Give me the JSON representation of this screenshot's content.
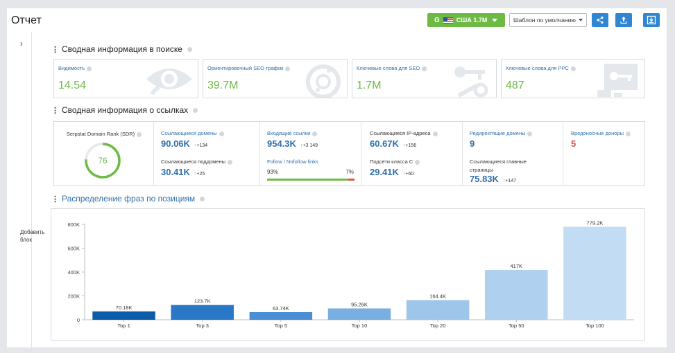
{
  "header": {
    "title": "Отчет",
    "region_button": "США 1.7M",
    "template_select": "Шаблон по умолчанию"
  },
  "sidebar": {
    "add_block": "Добавить блок"
  },
  "search_summary": {
    "title": "Сводная информация в поиске",
    "cards": [
      {
        "label": "Видимость",
        "value": "14.54"
      },
      {
        "label": "Ориентировочный SEO трафик",
        "value": "39.7M"
      },
      {
        "label": "Ключевые слова для SEO",
        "value": "1.7M"
      },
      {
        "label": "Ключевые слова для PPC",
        "value": "487"
      }
    ]
  },
  "links_summary": {
    "title": "Сводная информация о ссылках",
    "sdr_label": "Serpstat Domain Rank (SDR)",
    "sdr_value": "76",
    "sdr_fraction": 0.76,
    "ref_domains_label": "Ссылающиеся домены",
    "ref_domains_value": "90.06K",
    "ref_domains_delta": "+134",
    "ref_subdomains_label": "Ссылающиеся поддомены",
    "ref_subdomains_value": "30.41K",
    "ref_subdomains_delta": "+25",
    "backlinks_label": "Входящие ссылки",
    "backlinks_value": "954.3K",
    "backlinks_delta": "+3 149",
    "follow_label": "Follow / Nofollow links",
    "follow_pct": "93%",
    "nofollow_pct": "7%",
    "follow_fraction": 0.93,
    "ip_label": "Ссылающиеся IP-адреса",
    "ip_value": "60.67K",
    "ip_delta": "+156",
    "subnets_label": "Подсети класса С",
    "subnets_value": "29.41K",
    "subnets_delta": "+60",
    "redirect_label": "Редиректящие домены",
    "redirect_value": "9",
    "main_pages_label": "Ссылающиеся главные страницы",
    "main_pages_value": "75.83K",
    "main_pages_delta": "+147",
    "malicious_label": "Вредоносные доноры",
    "malicious_value": "5"
  },
  "positions": {
    "title": "Распределение фраз по позициям"
  },
  "chart_data": {
    "type": "bar",
    "categories": [
      "Top 1",
      "Top 3",
      "Top 5",
      "Top 10",
      "Top 20",
      "Top 50",
      "Top 100"
    ],
    "values": [
      70180,
      123700,
      63740,
      95260,
      164400,
      417000,
      779200
    ],
    "value_labels": [
      "70.18K",
      "123.7K",
      "63.74K",
      "95.26K",
      "164.4K",
      "417K",
      "779.2K"
    ],
    "yticks": [
      0,
      200000,
      400000,
      600000,
      800000
    ],
    "ytick_labels": [
      "0",
      "200K",
      "400K",
      "600K",
      "800K"
    ],
    "ylim": [
      0,
      800000
    ],
    "colors": [
      "#0d5ca8",
      "#2a78c8",
      "#4a8fd3",
      "#78aee0",
      "#9ec6ea",
      "#afd0ee",
      "#c2dcf3"
    ],
    "grid": false,
    "legend": "none"
  },
  "colors": {
    "accent": "#2f86d3",
    "green": "#6dbb45",
    "red": "#d9534f",
    "link_blue": "#2f6fab"
  },
  "icons": [
    "google-icon",
    "us-flag-icon",
    "share-icon",
    "upload-icon",
    "download-icon",
    "chevron-right-icon",
    "eye-icon",
    "traffic-icon",
    "keys-icon",
    "ppc-key-icon",
    "info-icon"
  ]
}
